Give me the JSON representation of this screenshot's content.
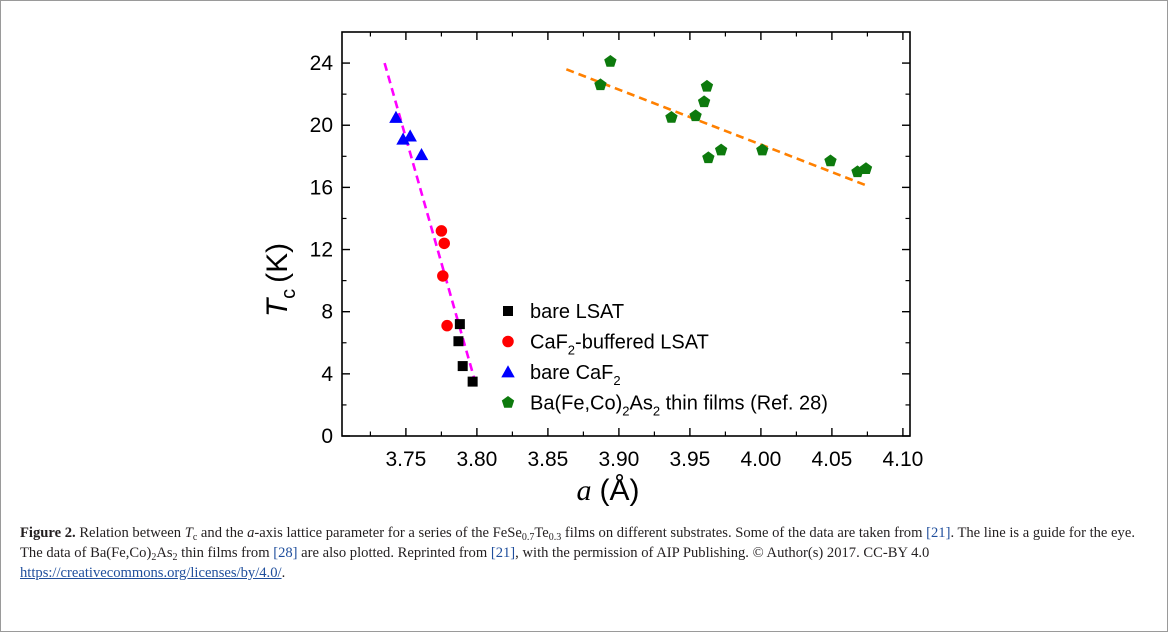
{
  "chart_data": {
    "type": "scatter",
    "xlabel_var": "a",
    "xlabel_unit": "(Å)",
    "ylabel_var": "T",
    "ylabel_sub": "c",
    "ylabel_unit": "(K)",
    "xlim": [
      3.705,
      4.105
    ],
    "ylim": [
      0,
      26
    ],
    "x_ticks": [
      "3.75",
      "3.80",
      "3.85",
      "3.90",
      "3.95",
      "4.00",
      "4.05",
      "4.10"
    ],
    "x_tick_values": [
      3.75,
      3.8,
      3.85,
      3.9,
      3.95,
      4.0,
      4.05,
      4.1
    ],
    "y_ticks": [
      "0",
      "4",
      "8",
      "12",
      "16",
      "20",
      "24"
    ],
    "y_tick_values": [
      0,
      4,
      8,
      12,
      16,
      20,
      24
    ],
    "legend_position": "bottom-right",
    "series": [
      {
        "name": "bare LSAT",
        "legend_main": "bare LSAT",
        "legend_sub": "",
        "legend_tail": "",
        "marker": "square",
        "color": "#000000",
        "points": [
          [
            3.788,
            7.2
          ],
          [
            3.787,
            6.1
          ],
          [
            3.79,
            4.5
          ],
          [
            3.797,
            3.5
          ]
        ]
      },
      {
        "name": "CaF2-buffered LSAT",
        "legend_main": "CaF",
        "legend_sub": "2",
        "legend_tail": "-buffered LSAT",
        "marker": "circle",
        "color": "#ff0000",
        "points": [
          [
            3.775,
            13.2
          ],
          [
            3.777,
            12.4
          ],
          [
            3.776,
            10.3
          ],
          [
            3.779,
            7.1
          ]
        ]
      },
      {
        "name": "bare CaF2",
        "legend_main": "bare CaF",
        "legend_sub": "2",
        "legend_tail": "",
        "marker": "triangle",
        "color": "#0000ff",
        "points": [
          [
            3.743,
            20.5
          ],
          [
            3.748,
            19.1
          ],
          [
            3.753,
            19.3
          ],
          [
            3.761,
            18.1
          ]
        ]
      },
      {
        "name": "Ba(Fe,Co)2As2 thin films (Ref. 28)",
        "legend_main": "Ba(Fe,Co)",
        "legend_sub": "2",
        "legend_tail": "As",
        "legend_sub2": "2",
        "legend_tail2": " thin films (Ref. 28)",
        "marker": "pentagon",
        "color": "#0d7a0d",
        "points": [
          [
            3.887,
            22.6
          ],
          [
            3.894,
            24.1
          ],
          [
            3.937,
            20.5
          ],
          [
            3.954,
            20.6
          ],
          [
            3.96,
            21.5
          ],
          [
            3.962,
            22.5
          ],
          [
            3.963,
            17.9
          ],
          [
            3.972,
            18.4
          ],
          [
            4.001,
            18.4
          ],
          [
            4.049,
            17.7
          ],
          [
            4.068,
            17.0
          ],
          [
            4.074,
            17.2
          ]
        ]
      }
    ],
    "guide_lines": [
      {
        "color": "#ff00ff",
        "x": [
          3.735,
          3.8
        ],
        "y": [
          24.0,
          3.1
        ]
      },
      {
        "color": "#ff8000",
        "x": [
          3.863,
          4.075
        ],
        "y": [
          23.6,
          16.1
        ]
      }
    ]
  },
  "caption": {
    "label": "Figure 2.",
    "s1": " Relation between ",
    "tc_var": "T",
    "tc_sub": "c",
    "s2": " and the ",
    "a_var": "a",
    "s3": "-axis lattice parameter for a series of the FeSe",
    "fe_sub1": "0.7",
    "fe_mid": "Te",
    "fe_sub2": "0.3",
    "s4": " films on different substrates. Some of the data are taken from ",
    "ref21a": "[21]",
    "s5": ". The line is a guide for the eye. The data of Ba(Fe,Co)",
    "ba_sub1": "2",
    "ba_mid": "As",
    "ba_sub2": "2",
    "s6": " thin films from ",
    "ref28": "[28]",
    "s7": " are also plotted. Reprinted from ",
    "ref21b": "[21]",
    "s8": ", with the permission of AIP Publishing. © Author(s) 2017. CC-BY 4.0 ",
    "link": "https://creativecommons.org/licenses/by/4.0/",
    "s9": "."
  }
}
